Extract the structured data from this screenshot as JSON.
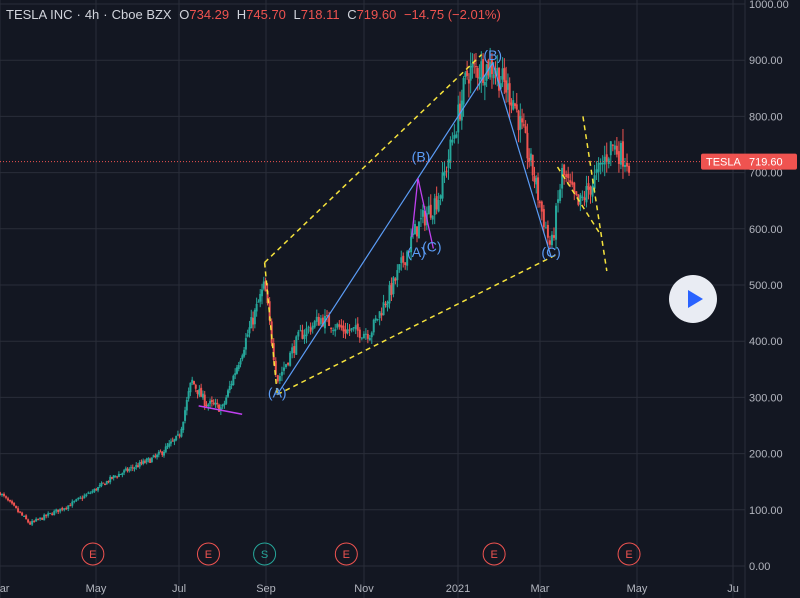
{
  "header": {
    "symbol": "TESLA INC",
    "interval": "4h",
    "exchange": "Cboe BZX",
    "o_label": "O",
    "o_value": "734.29",
    "h_label": "H",
    "h_value": "745.70",
    "l_label": "L",
    "l_value": "718.11",
    "c_label": "C",
    "c_value": "719.60",
    "change": "−14.75 (−2.01%)"
  },
  "price_badge": {
    "ticker": "TESLA",
    "value": "719.60"
  },
  "colors": {
    "up": "#26a69a",
    "down": "#ef5350",
    "wave": "#5b9cf6",
    "channel": "#f5e23c",
    "background": "#131722",
    "grid": "#2a2e39"
  },
  "chart_data": {
    "type": "candlestick",
    "title": "TESLA INC · 4h · Cboe BZX",
    "y_ticks": [
      "1000.00",
      "900.00",
      "800.00",
      "700.00",
      "600.00",
      "500.00",
      "400.00",
      "300.00",
      "200.00",
      "100.00",
      "0.00"
    ],
    "ylim": [
      0,
      1000
    ],
    "x_ticks": [
      "Mar",
      "May",
      "Jul",
      "Sep",
      "Nov",
      "2021",
      "Mar",
      "May",
      "Ju"
    ],
    "x_range": [
      "2020-03",
      "2021-06"
    ],
    "grid": true,
    "last_price": 719.6,
    "ohlc": {
      "open": 734.29,
      "high": 745.7,
      "low": 718.11,
      "close": 719.6,
      "change": -14.75,
      "change_pct": -2.01
    },
    "price_path": [
      [
        "2020-03-01",
        130
      ],
      [
        "2020-03-20",
        75
      ],
      [
        "2020-04-15",
        110
      ],
      [
        "2020-05-15",
        160
      ],
      [
        "2020-06-15",
        195
      ],
      [
        "2020-07-01",
        230
      ],
      [
        "2020-07-10",
        330
      ],
      [
        "2020-07-20",
        290
      ],
      [
        "2020-08-01",
        280
      ],
      [
        "2020-08-20",
        420
      ],
      [
        "2020-08-31",
        500
      ],
      [
        "2020-09-08",
        330
      ],
      [
        "2020-09-22",
        410
      ],
      [
        "2020-10-05",
        440
      ],
      [
        "2020-10-20",
        420
      ],
      [
        "2020-11-05",
        415
      ],
      [
        "2020-11-20",
        500
      ],
      [
        "2020-12-05",
        600
      ],
      [
        "2020-12-20",
        660
      ],
      [
        "2021-01-08",
        880
      ],
      [
        "2021-01-26",
        890
      ],
      [
        "2021-02-10",
        830
      ],
      [
        "2021-02-25",
        690
      ],
      [
        "2021-03-08",
        563
      ],
      [
        "2021-03-15",
        700
      ],
      [
        "2021-03-25",
        640
      ],
      [
        "2021-04-05",
        690
      ],
      [
        "2021-04-15",
        750
      ],
      [
        "2021-04-26",
        720
      ]
    ],
    "wave_labels": [
      {
        "text": "(A)",
        "date": "2020-09-08",
        "price": 300
      },
      {
        "text": "(B)",
        "date": "2021-01-26",
        "price": 900
      },
      {
        "text": "(C)",
        "date": "2021-03-08",
        "price": 550
      },
      {
        "text": "(A)",
        "date": "2020-12-05",
        "price": 550
      },
      {
        "text": "(B)",
        "date": "2020-12-08",
        "price": 720
      },
      {
        "text": "(C)",
        "date": "2020-12-15",
        "price": 560
      }
    ],
    "events": [
      {
        "text": "E",
        "date": "2020-04-29"
      },
      {
        "text": "E",
        "date": "2020-07-22"
      },
      {
        "text": "S",
        "date": "2020-08-31"
      },
      {
        "text": "E",
        "date": "2020-10-21"
      },
      {
        "text": "E",
        "date": "2021-01-27"
      },
      {
        "text": "E",
        "date": "2021-04-26"
      }
    ]
  }
}
